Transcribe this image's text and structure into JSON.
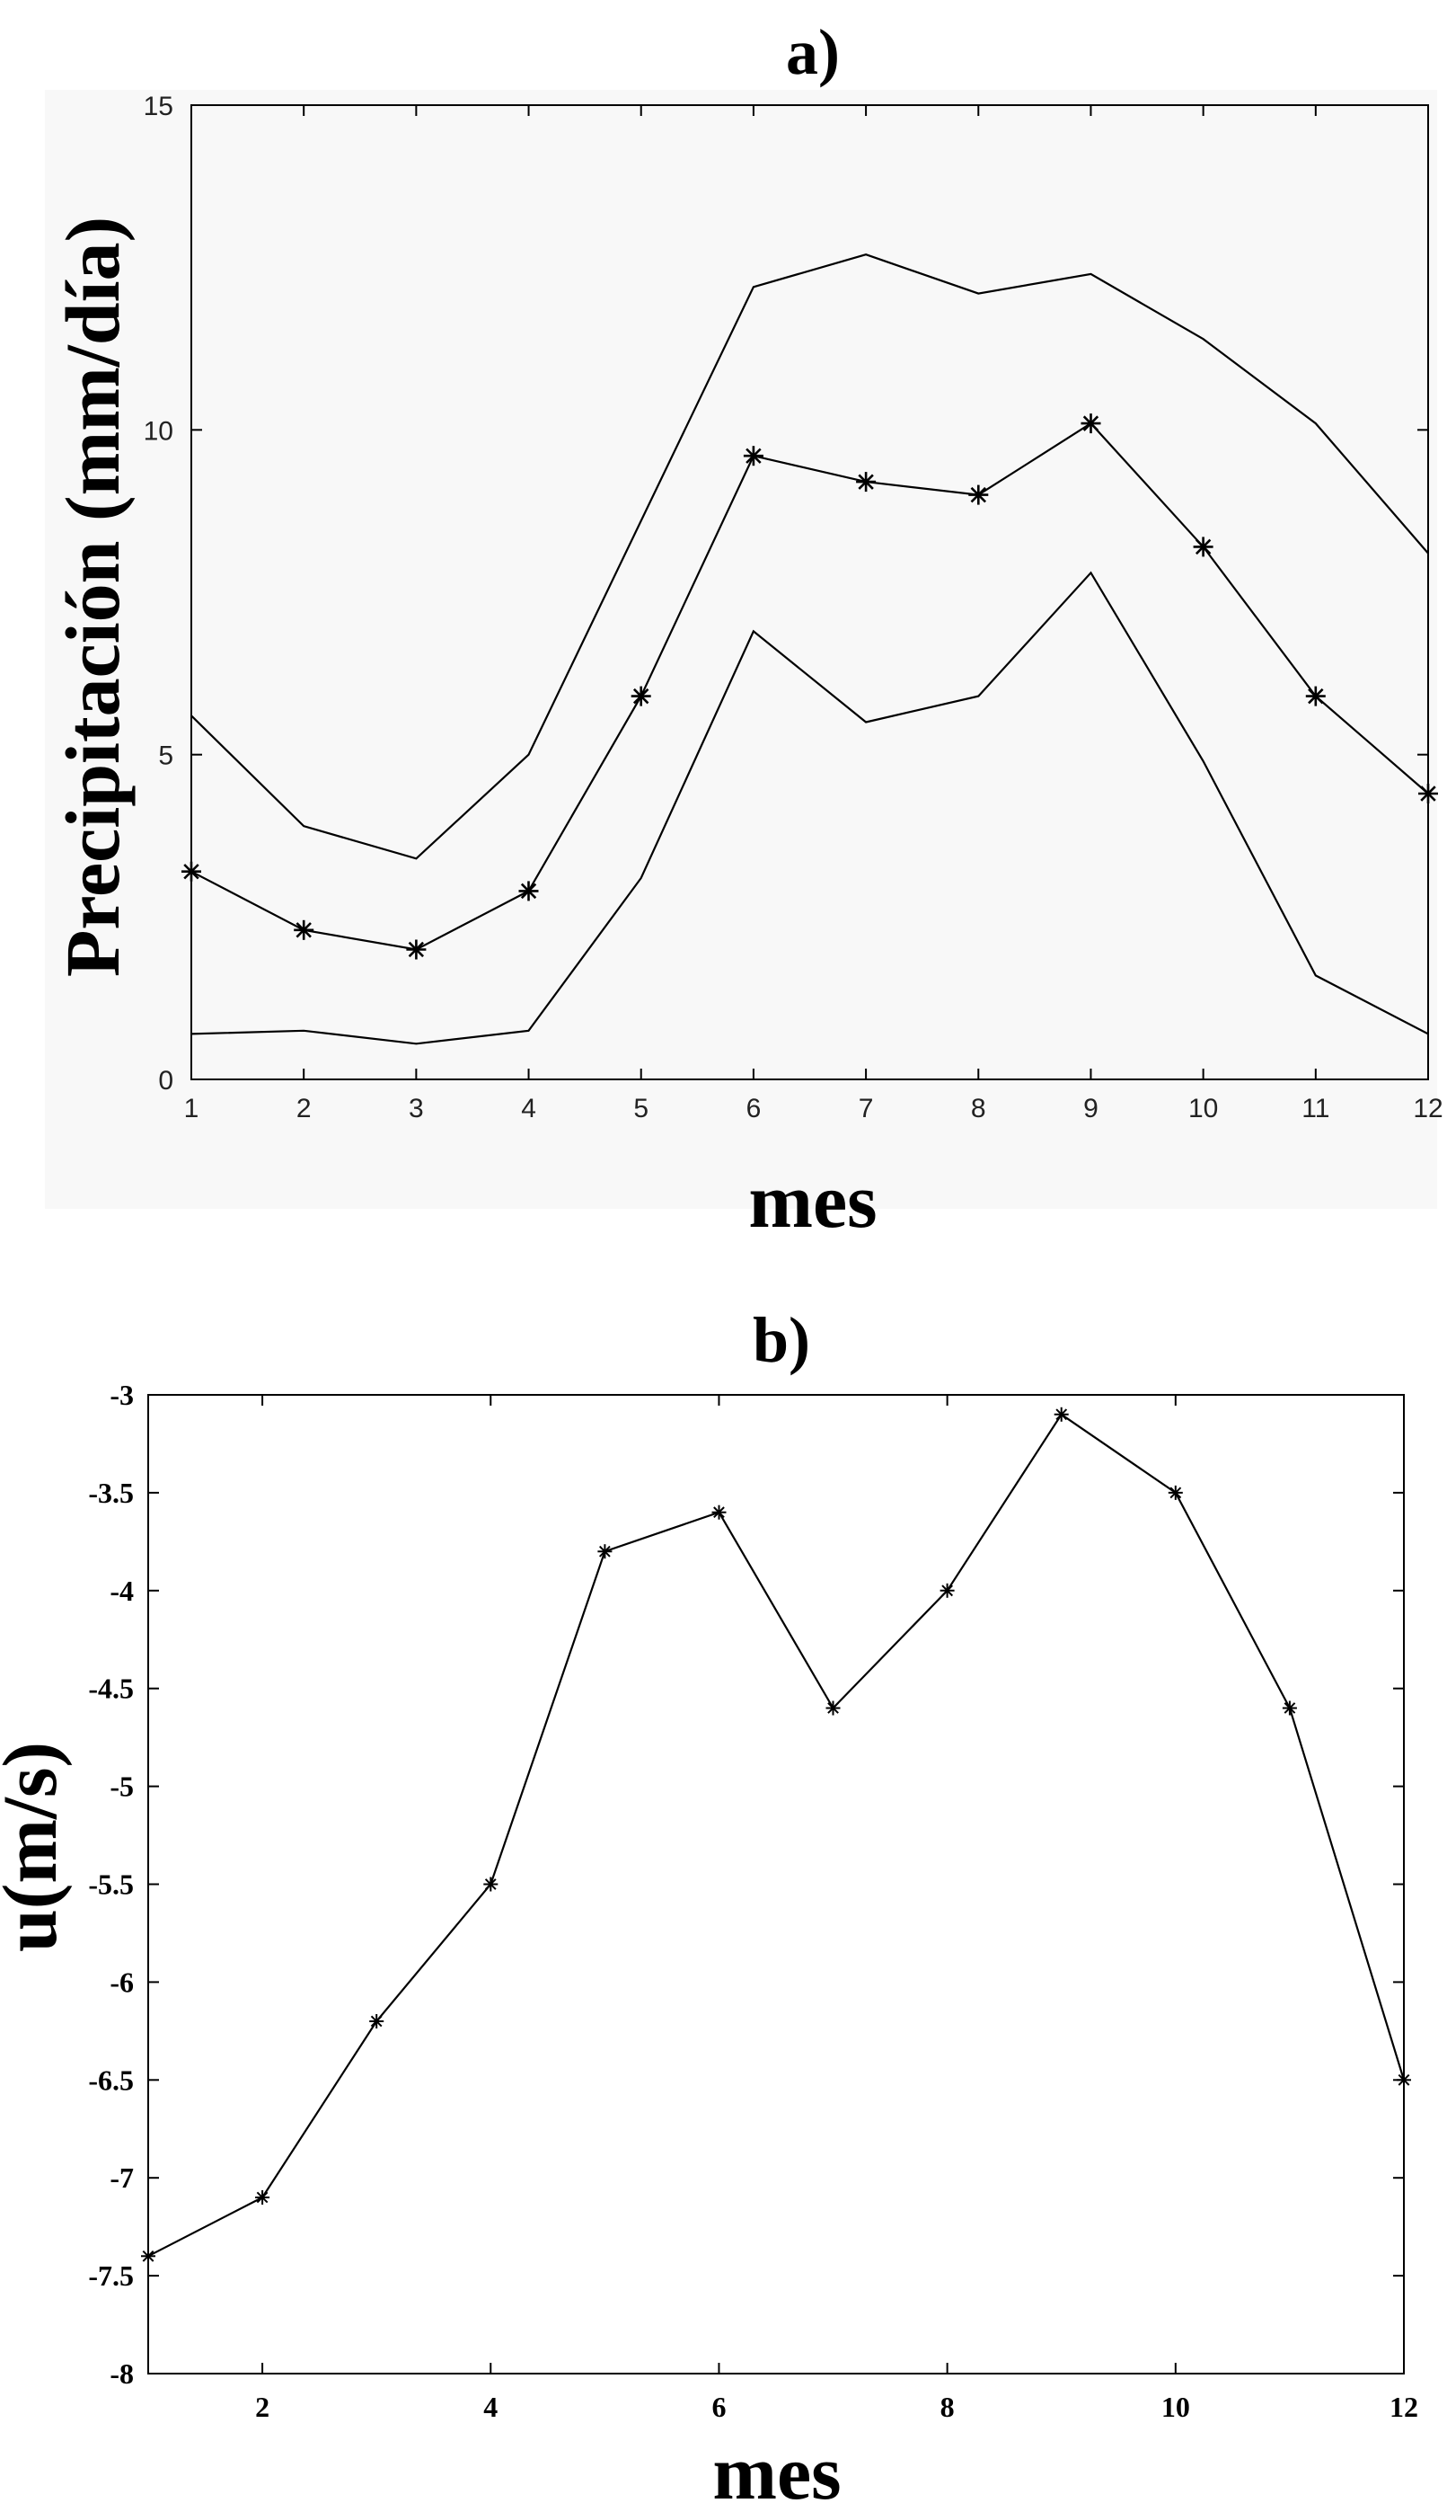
{
  "chart_data": [
    {
      "type": "line",
      "title": "a)",
      "xlabel": "mes",
      "ylabel": "Precipitación (mm/día)",
      "x": [
        1,
        2,
        3,
        4,
        5,
        6,
        7,
        8,
        9,
        10,
        11,
        12
      ],
      "xlim": [
        1,
        12
      ],
      "ylim": [
        0,
        15
      ],
      "x_ticks": [
        "1",
        "2",
        "3",
        "4",
        "5",
        "6",
        "7",
        "8",
        "9",
        "10",
        "11",
        "12"
      ],
      "y_ticks": [
        "0",
        "5",
        "10",
        "15"
      ],
      "grid": false,
      "series": [
        {
          "values": [
            5.6,
            3.9,
            3.4,
            5.0,
            8.6,
            12.2,
            12.7,
            12.1,
            12.4,
            11.4,
            10.1,
            8.1
          ],
          "marker": "none"
        },
        {
          "values": [
            3.2,
            2.3,
            2.0,
            2.9,
            5.9,
            9.6,
            9.2,
            9.0,
            10.1,
            8.2,
            5.9,
            4.4
          ],
          "marker": "*"
        },
        {
          "values": [
            0.7,
            0.75,
            0.55,
            0.75,
            3.1,
            6.9,
            5.5,
            5.9,
            7.8,
            4.9,
            1.6,
            0.7
          ],
          "marker": "none"
        }
      ]
    },
    {
      "type": "line",
      "title": "b)",
      "xlabel": "mes",
      "ylabel": "u(m/s)",
      "x": [
        1,
        2,
        3,
        4,
        5,
        6,
        7,
        8,
        9,
        10,
        11,
        12
      ],
      "xlim": [
        1,
        12
      ],
      "ylim": [
        -8,
        -3
      ],
      "x_ticks": [
        "2",
        "4",
        "6",
        "8",
        "10",
        "12"
      ],
      "y_ticks": [
        "-3",
        "-3.5",
        "-4",
        "-4.5",
        "-5",
        "-5.5",
        "-6",
        "-6.5",
        "-7",
        "-7.5",
        "-8"
      ],
      "grid": false,
      "series": [
        {
          "values": [
            -7.4,
            -7.1,
            -6.2,
            -5.5,
            -3.8,
            -3.6,
            -4.6,
            -4.0,
            -3.1,
            -3.5,
            -4.6,
            -6.5
          ],
          "marker": "*"
        }
      ]
    }
  ]
}
